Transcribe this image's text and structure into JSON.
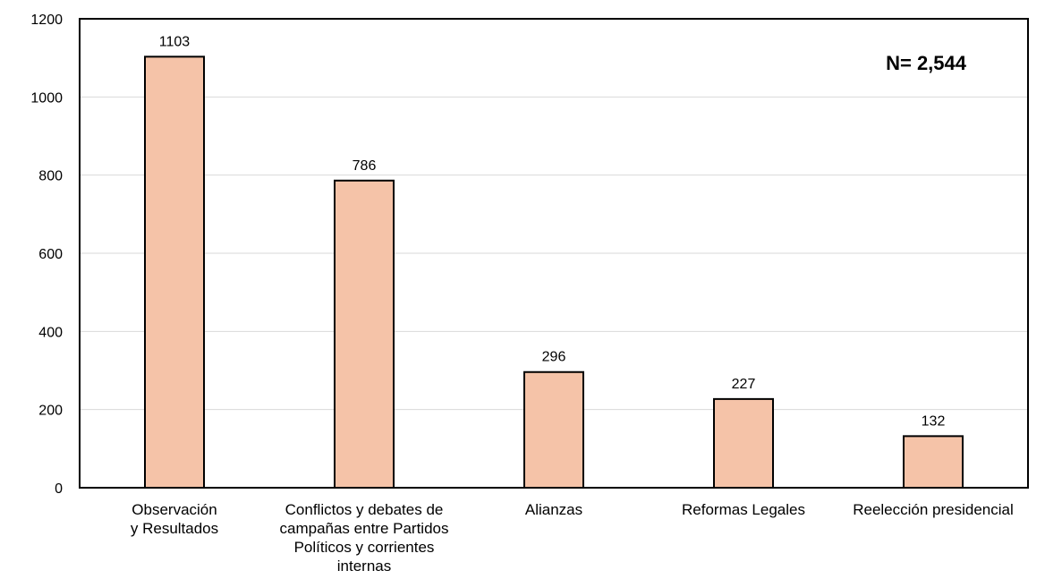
{
  "chart_data": {
    "type": "bar",
    "categories": [
      "Observación y Resultados",
      "Conflictos y debates de campañas entre Partidos Políticos y corrientes internas",
      "Alianzas",
      "Reformas Legales",
      "Reelección presidencial"
    ],
    "category_lines": [
      [
        "Observación",
        "y Resultados"
      ],
      [
        "Conflictos y debates de",
        "campañas entre Partidos",
        "Políticos y corrientes",
        "internas"
      ],
      [
        "Alianzas"
      ],
      [
        "Reformas Legales"
      ],
      [
        "Reelección presidencial"
      ]
    ],
    "values": [
      1103,
      786,
      296,
      227,
      132
    ],
    "value_labels": [
      "1103",
      "786",
      "296",
      "227",
      "132"
    ],
    "ylim": [
      0,
      1200
    ],
    "yticks": [
      0,
      200,
      400,
      600,
      800,
      1000,
      1200
    ],
    "annotation": "N= 2,544",
    "annotation_position": "top-right",
    "grid": true,
    "bar_color": "#F5C3A8",
    "bar_edge_color": "#000000",
    "grid_color": "#D9D9D9"
  }
}
